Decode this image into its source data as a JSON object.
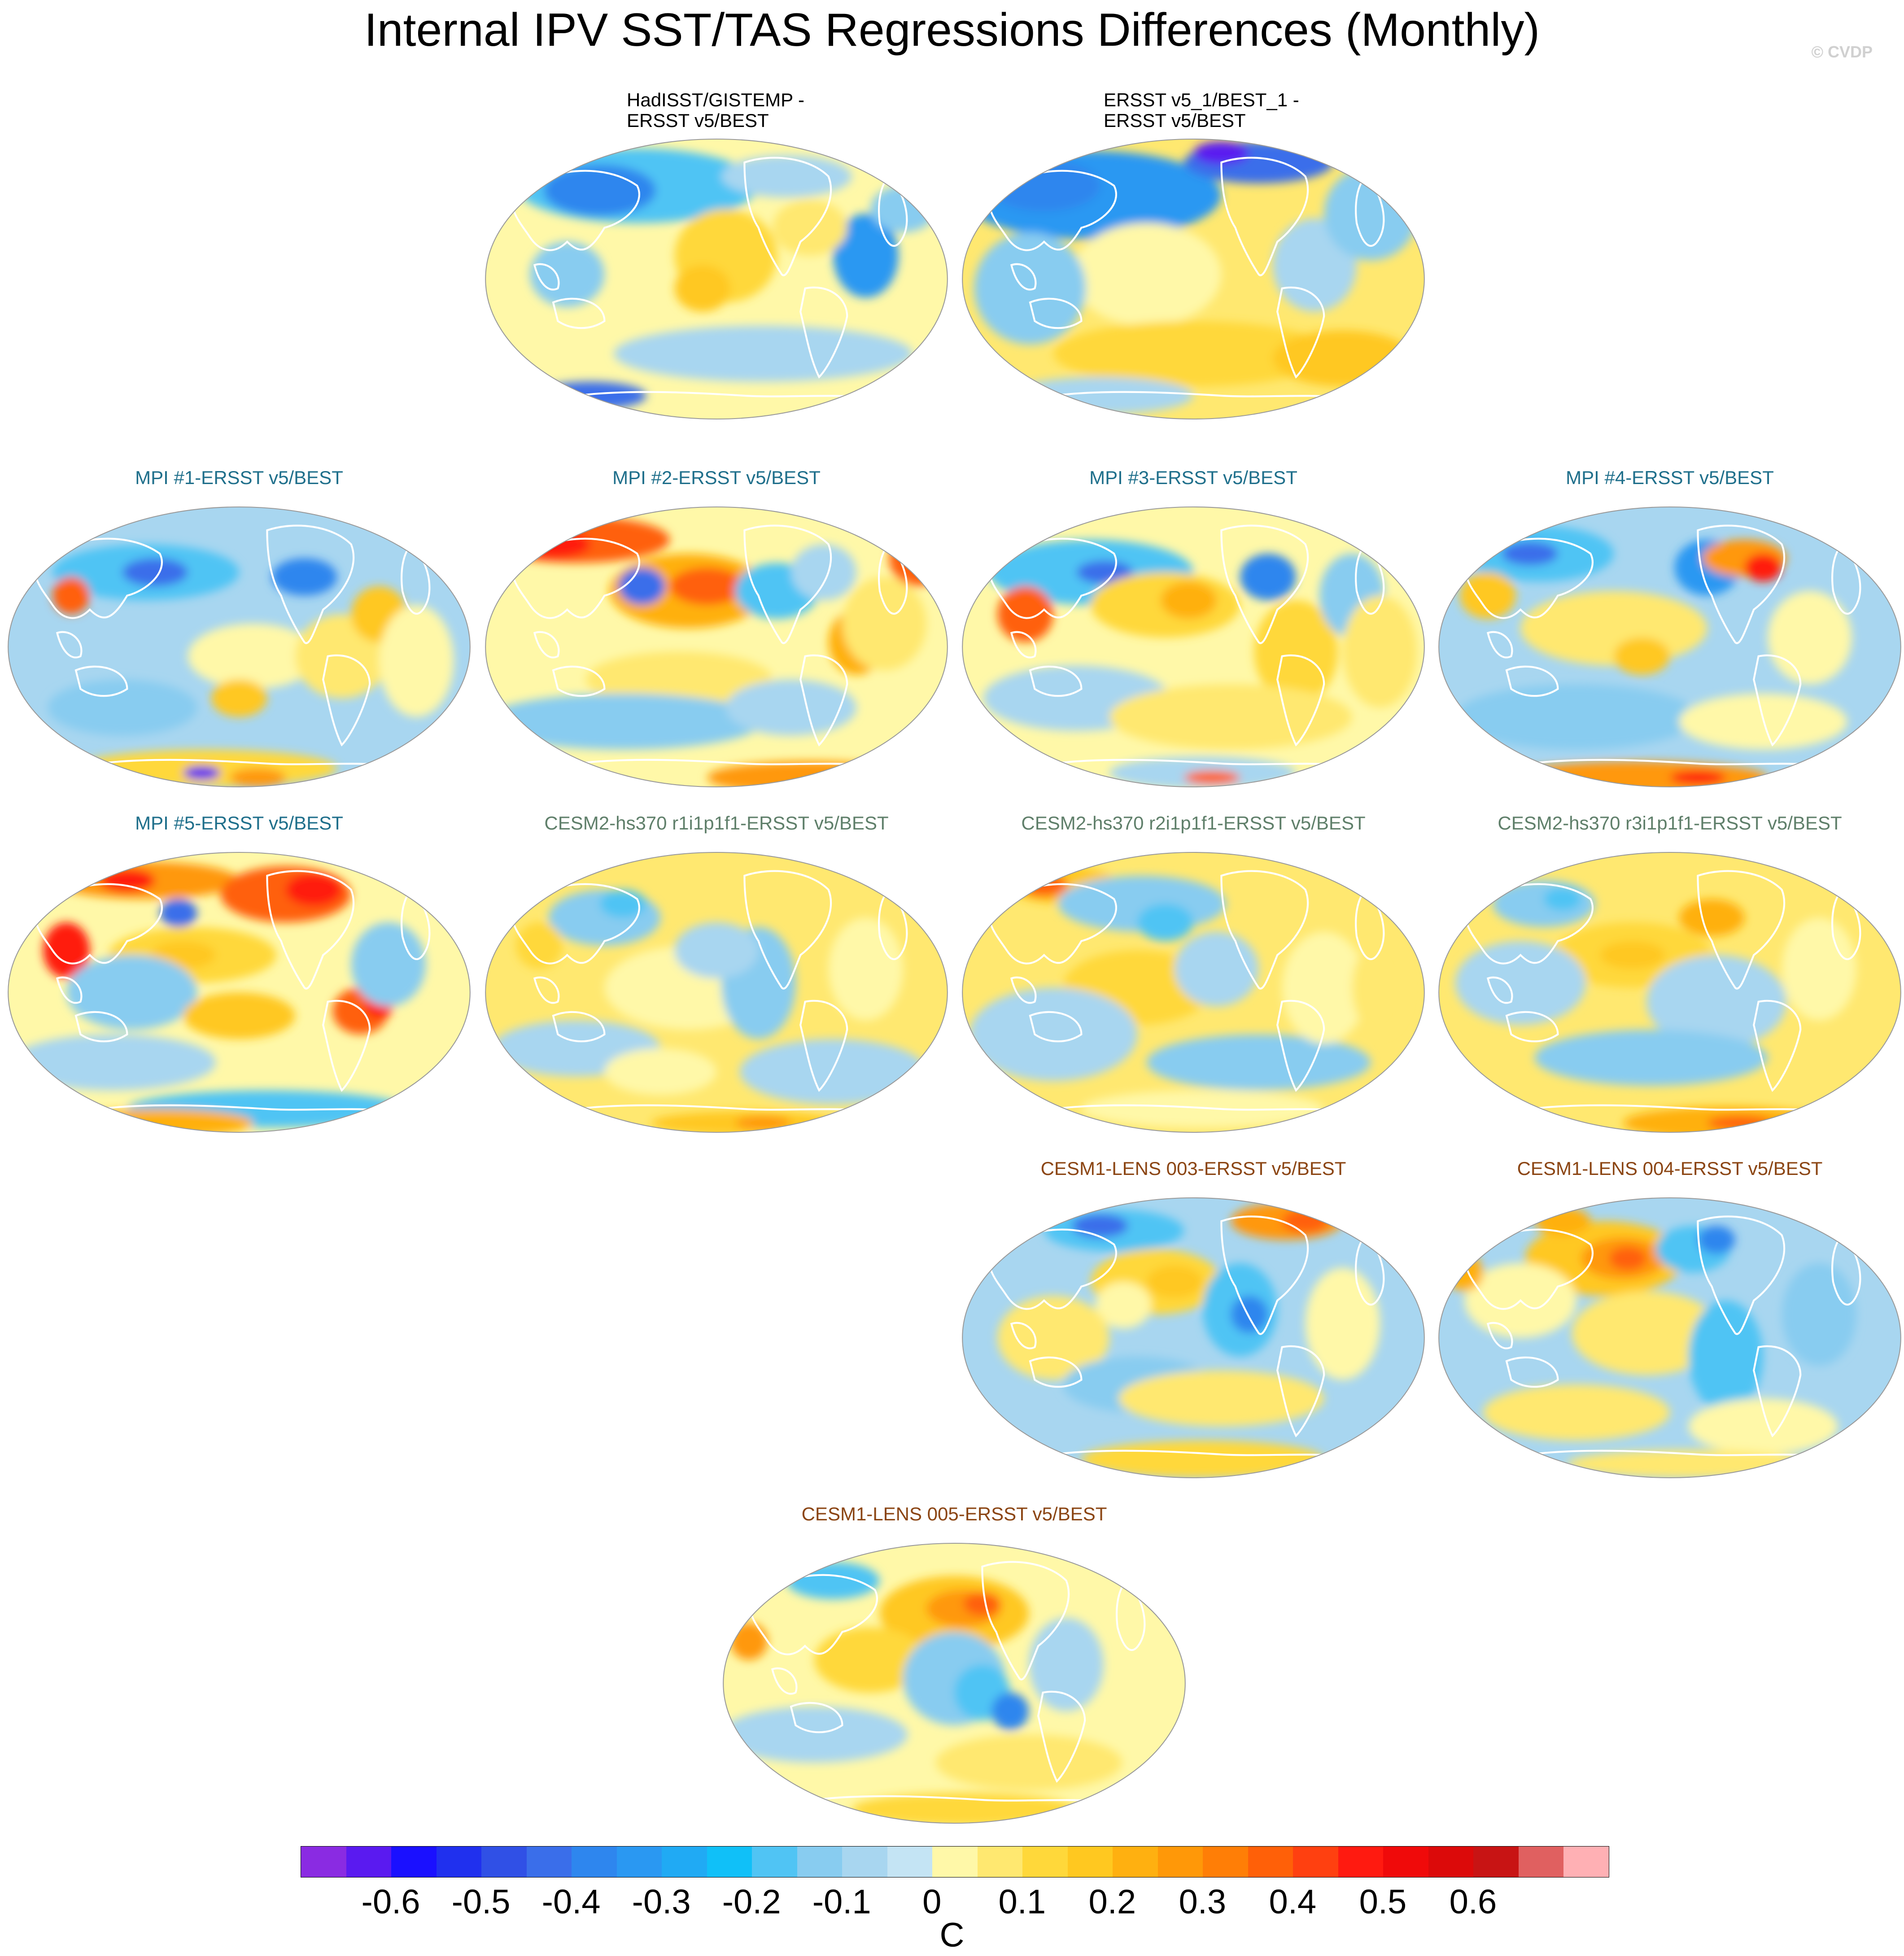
{
  "title": "Internal IPV SST/TAS Regressions Differences (Monthly)",
  "watermark": "© CVDP",
  "panels": [
    {
      "id": "p1",
      "title_lines": [
        "HadISST/GISTEMP -",
        "ERSST v5/BEST"
      ],
      "title_color": "#000000",
      "pattern": "obs1"
    },
    {
      "id": "p2",
      "title_lines": [
        "ERSST v5_1/BEST_1 -",
        "ERSST v5/BEST"
      ],
      "title_color": "#000000",
      "pattern": "obs2"
    },
    {
      "id": "p3",
      "title_lines": [
        "MPI #1-ERSST v5/BEST"
      ],
      "title_color": "#1f6f8b",
      "pattern": "mpi1"
    },
    {
      "id": "p4",
      "title_lines": [
        "MPI #2-ERSST v5/BEST"
      ],
      "title_color": "#1f6f8b",
      "pattern": "mpi2"
    },
    {
      "id": "p5",
      "title_lines": [
        "MPI #3-ERSST v5/BEST"
      ],
      "title_color": "#1f6f8b",
      "pattern": "mpi3"
    },
    {
      "id": "p6",
      "title_lines": [
        "MPI #4-ERSST v5/BEST"
      ],
      "title_color": "#1f6f8b",
      "pattern": "mpi4"
    },
    {
      "id": "p7",
      "title_lines": [
        "MPI #5-ERSST v5/BEST"
      ],
      "title_color": "#1f6f8b",
      "pattern": "mpi5"
    },
    {
      "id": "p8",
      "title_lines": [
        "CESM2-hs370 r1i1p1f1-ERSST v5/BEST"
      ],
      "title_color": "#5f7f6a",
      "pattern": "c2a"
    },
    {
      "id": "p9",
      "title_lines": [
        "CESM2-hs370 r2i1p1f1-ERSST v5/BEST"
      ],
      "title_color": "#5f7f6a",
      "pattern": "c2b"
    },
    {
      "id": "p10",
      "title_lines": [
        "CESM2-hs370 r3i1p1f1-ERSST v5/BEST"
      ],
      "title_color": "#5f7f6a",
      "pattern": "c2c"
    },
    {
      "id": "p11",
      "title_lines": [
        "CESM1-LENS 003-ERSST v5/BEST"
      ],
      "title_color": "#8b4513",
      "pattern": "c1a"
    },
    {
      "id": "p12",
      "title_lines": [
        "CESM1-LENS 004-ERSST v5/BEST"
      ],
      "title_color": "#8b4513",
      "pattern": "c1b"
    },
    {
      "id": "p13",
      "title_lines": [
        "CESM1-LENS 005-ERSST v5/BEST"
      ],
      "title_color": "#8b4513",
      "pattern": "c1c"
    }
  ],
  "colorbar": {
    "colors": [
      "#8a2be2",
      "#5a1af0",
      "#1a10ff",
      "#2030ee",
      "#3050e6",
      "#3a6eea",
      "#2e86ee",
      "#2a98f2",
      "#20aaf4",
      "#10c0f8",
      "#50c4f4",
      "#88ccf0",
      "#a8d6f0",
      "#c4e4f4",
      "#fff8a8",
      "#ffe870",
      "#ffd83a",
      "#ffc820",
      "#ffb010",
      "#ff9808",
      "#ff7e06",
      "#ff6008",
      "#ff4010",
      "#ff1a10",
      "#f00a0a",
      "#dc0a0a",
      "#c81414",
      "#e06060",
      "#ffb0b4"
    ],
    "labels": [
      "-0.6",
      "-0.5",
      "-0.4",
      "-0.3",
      "-0.2",
      "-0.1",
      "0",
      "0.1",
      "0.2",
      "0.3",
      "0.4",
      "0.5",
      "0.6"
    ],
    "unit": "C"
  }
}
